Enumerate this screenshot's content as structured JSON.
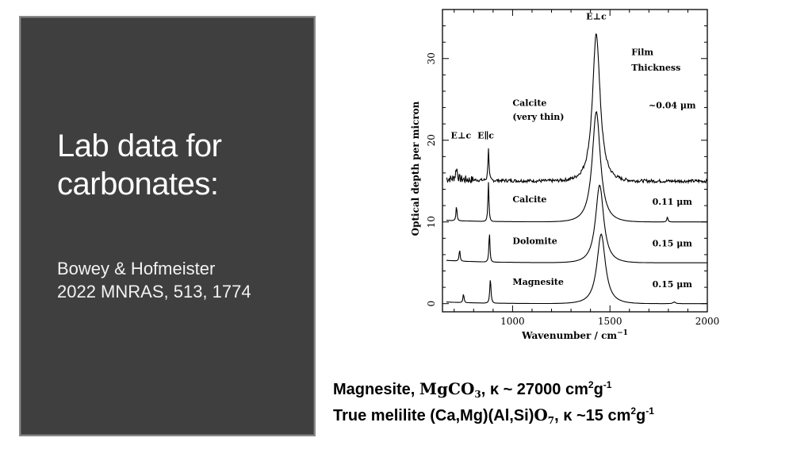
{
  "slide": {
    "title_line1": "Lab data for",
    "title_line2": "carbonates:",
    "citation_line1": "Bowey & Hofmeister",
    "citation_line2": "2022 MNRAS, 513, 1774"
  },
  "caption": {
    "line1": {
      "prefix": "Magnesite, ",
      "formula_main": "MgCO",
      "formula_sub": "3",
      "kappa_text": ", κ ~ 27000 cm",
      "unit_sup1": "2",
      "unit_g": "g",
      "unit_sup2": "-1"
    },
    "line2": {
      "prefix": "True melilite (Ca,Mg)(Al,Si)",
      "formula_main": "O",
      "formula_sub": "7",
      "kappa_text": ", κ ~15 cm",
      "unit_sup1": "2",
      "unit_g": "g",
      "unit_sup2": "-1"
    }
  },
  "chart_data": {
    "type": "line",
    "xlabel": "Wavenumber / cm",
    "xlabel_sup": "−1",
    "ylabel": "Optical depth per micron",
    "xlim": [
      640,
      2000
    ],
    "ylim": [
      -1,
      36
    ],
    "x_ticks": [
      1000,
      1500,
      2000
    ],
    "y_ticks": [
      0,
      10,
      20,
      30
    ],
    "annotations": {
      "perp_top": "E⊥c",
      "perp_left": "E⊥c",
      "parallel": "E∥c",
      "film_line1": "Film",
      "film_line2": "Thickness"
    },
    "series": [
      {
        "name": "Calcite",
        "name_line2": "(very thin)",
        "thickness": "~0.04 μm",
        "offset": 15,
        "noise": 0.4,
        "peaks": [
          [
            712,
            1.4,
            10
          ],
          [
            876,
            4.0,
            6
          ],
          [
            1430,
            18.0,
            45
          ]
        ],
        "tail": 0.3
      },
      {
        "name": "Calcite",
        "thickness": "0.11 μm",
        "offset": 10,
        "noise": 0,
        "peaks": [
          [
            712,
            1.8,
            6
          ],
          [
            876,
            4.8,
            6
          ],
          [
            1430,
            13.5,
            48
          ],
          [
            1795,
            0.6,
            7
          ]
        ],
        "tail": 0.2
      },
      {
        "name": "Dolomite",
        "thickness": "0.15 μm",
        "offset": 5,
        "noise": 0,
        "peaks": [
          [
            728,
            1.4,
            6
          ],
          [
            881,
            3.7,
            6
          ],
          [
            1447,
            9.5,
            48
          ]
        ],
        "tail": 0.3
      },
      {
        "name": "Magnesite",
        "thickness": "0.15 μm",
        "offset": 0,
        "noise": 0,
        "peaks": [
          [
            748,
            1.1,
            6
          ],
          [
            886,
            3.0,
            7
          ],
          [
            1455,
            8.5,
            50
          ],
          [
            1830,
            0.2,
            15
          ]
        ],
        "tail": 0.2
      }
    ]
  }
}
